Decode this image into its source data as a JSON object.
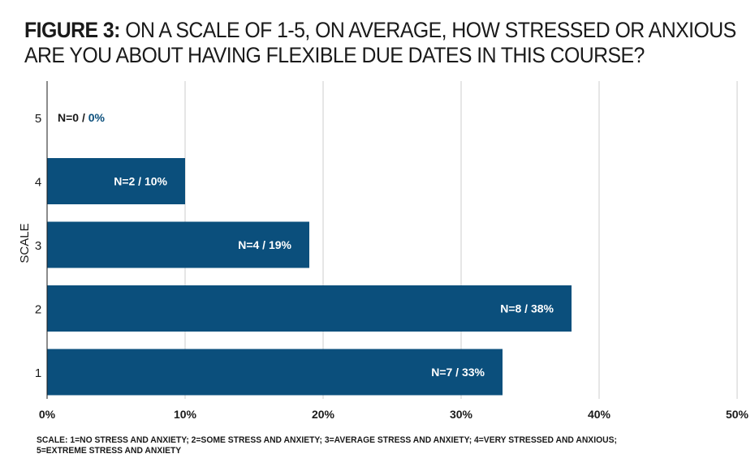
{
  "title": {
    "prefix": "FIGURE 3:",
    "line1": "ON A SCALE OF 1-5, ON AVERAGE, HOW STRESSED OR ANXIOUS",
    "line2": "ARE YOU ABOUT HAVING FLEXIBLE DUE DATES IN THIS COURSE?"
  },
  "footer": {
    "line1": "SCALE: 1=NO STRESS AND ANXIETY; 2=SOME STRESS AND ANXIETY; 3=AVERAGE STRESS AND ANXIETY; 4=VERY STRESSED AND ANXIOUS;",
    "line2": "5=EXTREME STRESS AND ANXIETY"
  },
  "colors": {
    "bar": "#0b4f7c",
    "grid": "#cccccc",
    "label_inside": "#ffffff",
    "label_prefix_outside": "#1a1a1a",
    "label_pct_outside": "#0b4f7c"
  },
  "chart_data": {
    "type": "bar",
    "orientation": "horizontal",
    "categories": [
      "5",
      "4",
      "3",
      "2",
      "1"
    ],
    "values": [
      0,
      10,
      19,
      38,
      33
    ],
    "labels": [
      {
        "prefix": "N=0 /",
        "pct": "0%"
      },
      {
        "prefix": "N=2 /",
        "pct": "10%"
      },
      {
        "prefix": "N=4 /",
        "pct": "19%"
      },
      {
        "prefix": "N=8 /",
        "pct": "38%"
      },
      {
        "prefix": "N=7 /",
        "pct": "33%"
      }
    ],
    "ylabel": "SCALE",
    "xlabel": "",
    "xlim": [
      0,
      50
    ],
    "xticks": [
      0,
      10,
      20,
      30,
      40,
      50
    ],
    "xtick_labels": [
      "0%",
      "10%",
      "20%",
      "30%",
      "40%",
      "50%"
    ],
    "grid": true
  }
}
